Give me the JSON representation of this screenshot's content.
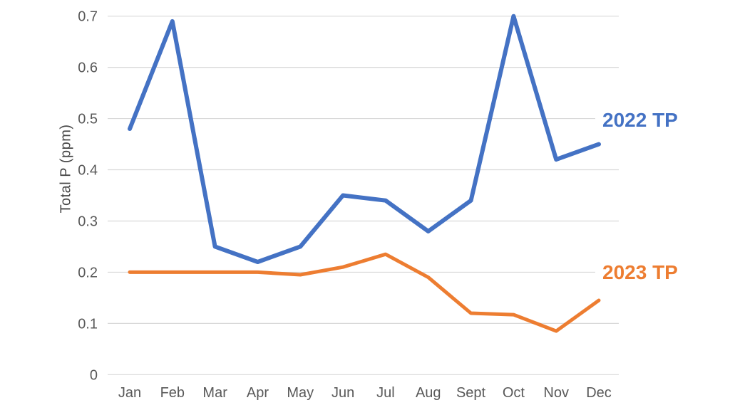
{
  "chart_data": {
    "type": "line",
    "title": "",
    "xlabel": "",
    "ylabel": "Total P (ppm)",
    "ylim": [
      0,
      0.7
    ],
    "y_tick_labels": [
      "0",
      "0.1",
      "0.2",
      "0.3",
      "0.4",
      "0.5",
      "0.6",
      "0.7"
    ],
    "grid": true,
    "legend_position": "inline-right",
    "categories": [
      "Jan",
      "Feb",
      "Mar",
      "Apr",
      "May",
      "Jun",
      "Jul",
      "Aug",
      "Sept",
      "Oct",
      "Nov",
      "Dec"
    ],
    "series": [
      {
        "name": "2022 TP",
        "color": "#4472c4",
        "stroke_width": 6,
        "values": [
          0.48,
          0.69,
          0.25,
          0.22,
          0.25,
          0.35,
          0.34,
          0.28,
          0.34,
          0.7,
          0.42,
          0.45
        ]
      },
      {
        "name": "2023 TP",
        "color": "#ed7d31",
        "stroke_width": 5,
        "values": [
          0.2,
          0.2,
          0.2,
          0.2,
          0.195,
          0.21,
          0.235,
          0.19,
          0.12,
          0.117,
          0.085,
          0.145
        ]
      }
    ]
  }
}
